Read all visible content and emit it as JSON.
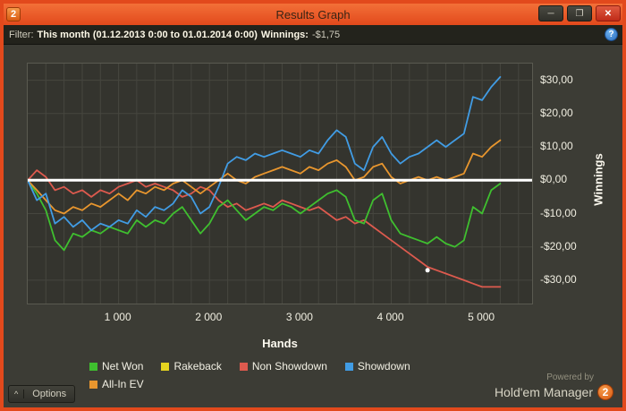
{
  "window": {
    "titlebar": {
      "title": "Results Graph",
      "app_badge": "2",
      "minimize_glyph": "─",
      "maximize_glyph": "❐",
      "close_glyph": "✕"
    },
    "filter_bar": {
      "label": "Filter:",
      "range_text": "This month (01.12.2013 0:00 to 01.01.2014 0:00)",
      "winnings_label": "Winnings:",
      "winnings_value": "-$1,75",
      "help_glyph": "?"
    },
    "footer": {
      "options_chevron": "^",
      "options_label": "Options",
      "powered_by": "Powered by",
      "brand": "Hold'em Manager",
      "brand_badge": "2"
    }
  },
  "chart_data": {
    "type": "line",
    "x_label": "Hands",
    "y_label": "Winnings",
    "xlim": [
      0,
      5550
    ],
    "ylim": [
      -37,
      35
    ],
    "x_start": 0,
    "x_step": 100,
    "grid_x_interval": 200,
    "grid_color": "#46463f",
    "zero_line_color": "#ffffff",
    "x_ticks": [
      {
        "value": 1000,
        "label": "1 000"
      },
      {
        "value": 2000,
        "label": "2 000"
      },
      {
        "value": 3000,
        "label": "3 000"
      },
      {
        "value": 4000,
        "label": "4 000"
      },
      {
        "value": 5000,
        "label": "5 000"
      }
    ],
    "y_ticks": [
      {
        "value": 30,
        "label": "$30,00"
      },
      {
        "value": 20,
        "label": "$20,00"
      },
      {
        "value": 10,
        "label": "$10,00"
      },
      {
        "value": 0,
        "label": "$0,00"
      },
      {
        "value": -10,
        "label": "-$10,00"
      },
      {
        "value": -20,
        "label": "-$20,00"
      },
      {
        "value": -30,
        "label": "-$30,00"
      }
    ],
    "marker": {
      "x": 4400,
      "y": -27,
      "color": "#ffffff"
    },
    "draw_order": [
      1,
      2,
      0,
      4,
      3
    ],
    "series": [
      {
        "name": "Net Won",
        "color": "#3fbf2f",
        "values": [
          0,
          -4,
          -9,
          -18,
          -21,
          -16,
          -17,
          -15,
          -16,
          -14,
          -15,
          -16,
          -12,
          -14,
          -12,
          -13,
          -10,
          -8,
          -12,
          -16,
          -13,
          -8,
          -6,
          -9,
          -12,
          -10,
          -8,
          -9,
          -7,
          -8,
          -10,
          -8,
          -6,
          -4,
          -3,
          -5,
          -12,
          -13,
          -6,
          -4,
          -12,
          -16,
          -17,
          -18,
          -19,
          -17,
          -19,
          -20,
          -18,
          -8,
          -10,
          -3,
          -1
        ]
      },
      {
        "name": "Rakeback",
        "color": "#e6d41f",
        "values": [
          0,
          0,
          0,
          0,
          0,
          0,
          0,
          0,
          0,
          0,
          0,
          0,
          0,
          0,
          0,
          0,
          0,
          0,
          0,
          0,
          0,
          0,
          0,
          0,
          0,
          0,
          0,
          0,
          0,
          0,
          0,
          0,
          0,
          0,
          0,
          0,
          0,
          0,
          0,
          0,
          0,
          0,
          0,
          0,
          0,
          0,
          0,
          0,
          0,
          0,
          0,
          0,
          0
        ]
      },
      {
        "name": "Non Showdown",
        "color": "#dd5a4e",
        "values": [
          0,
          3,
          1,
          -3,
          -2,
          -4,
          -3,
          -5,
          -3,
          -4,
          -2,
          -1,
          0,
          -2,
          -1,
          -2,
          -3,
          -5,
          -4,
          -2,
          -3,
          -6,
          -8,
          -7,
          -9,
          -8,
          -7,
          -8,
          -6,
          -7,
          -8,
          -9,
          -8,
          -10,
          -12,
          -11,
          -13,
          -12,
          -14,
          -16,
          -18,
          -20,
          -22,
          -24,
          -26,
          -27,
          -28,
          -29,
          -30,
          -31,
          -32,
          -32,
          -32
        ]
      },
      {
        "name": "Showdown",
        "color": "#419ce4",
        "values": [
          0,
          -6,
          -4,
          -13,
          -11,
          -14,
          -12,
          -15,
          -13,
          -14,
          -12,
          -13,
          -9,
          -11,
          -8,
          -9,
          -7,
          -3,
          -5,
          -10,
          -8,
          -2,
          5,
          7,
          6,
          8,
          7,
          8,
          9,
          8,
          7,
          9,
          8,
          12,
          15,
          13,
          5,
          3,
          10,
          13,
          8,
          5,
          7,
          8,
          10,
          12,
          10,
          12,
          14,
          25,
          24,
          28,
          31
        ]
      },
      {
        "name": "All-In EV",
        "color": "#e8962e",
        "values": [
          0,
          -3,
          -6,
          -9,
          -10,
          -8,
          -9,
          -7,
          -8,
          -6,
          -4,
          -6,
          -3,
          -4,
          -2,
          -3,
          -1,
          0,
          -2,
          -4,
          -2,
          0,
          2,
          0,
          -1,
          1,
          2,
          3,
          4,
          3,
          2,
          4,
          3,
          5,
          6,
          4,
          0,
          1,
          4,
          5,
          1,
          -1,
          0,
          1,
          0,
          1,
          0,
          1,
          2,
          8,
          7,
          10,
          12
        ]
      }
    ]
  }
}
